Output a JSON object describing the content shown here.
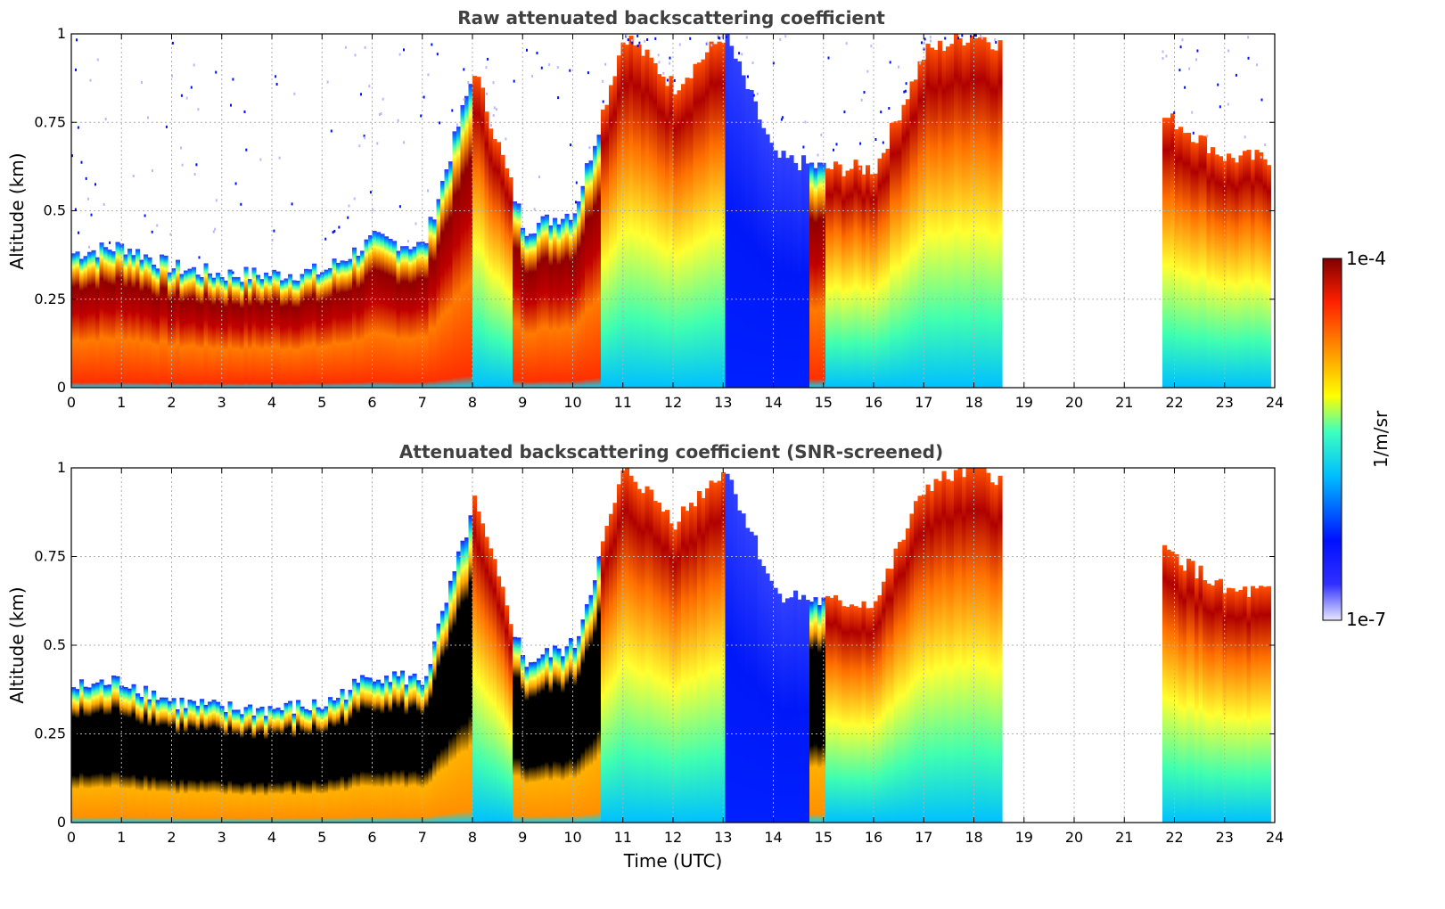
{
  "chart_data": [
    {
      "type": "heatmap",
      "title": "Raw attenuated backscattering coefficient",
      "xlabel": "",
      "ylabel": "Altitude (km)",
      "xlim": [
        0,
        24
      ],
      "ylim": [
        0,
        1
      ],
      "x_ticks": [
        "0",
        "1",
        "2",
        "3",
        "4",
        "5",
        "6",
        "7",
        "8",
        "9",
        "10",
        "11",
        "12",
        "13",
        "14",
        "15",
        "16",
        "17",
        "18",
        "19",
        "20",
        "21",
        "22",
        "23",
        "24"
      ],
      "y_ticks": [
        "0",
        "0.25",
        "0.5",
        "0.75",
        "1"
      ],
      "grid": true,
      "data_gaps_utc": [
        [
          18.5,
          21.75
        ],
        [
          23.9,
          24
        ]
      ],
      "layer_top_km": [
        {
          "t": 0,
          "h": 0.38
        },
        {
          "t": 1,
          "h": 0.4
        },
        {
          "t": 2,
          "h": 0.34
        },
        {
          "t": 3,
          "h": 0.32
        },
        {
          "t": 4,
          "h": 0.32
        },
        {
          "t": 5,
          "h": 0.33
        },
        {
          "t": 6,
          "h": 0.42
        },
        {
          "t": 7,
          "h": 0.4
        },
        {
          "t": 8,
          "h": 0.9
        },
        {
          "t": 9,
          "h": 0.45
        },
        {
          "t": 10,
          "h": 0.5
        },
        {
          "t": 11,
          "h": 1.0
        },
        {
          "t": 12,
          "h": 0.85
        },
        {
          "t": 13,
          "h": 1.0
        },
        {
          "t": 14,
          "h": 0.65
        },
        {
          "t": 15,
          "h": 0.62
        },
        {
          "t": 16,
          "h": 0.62
        },
        {
          "t": 17,
          "h": 0.95
        },
        {
          "t": 18,
          "h": 1.0
        },
        {
          "t": 22,
          "h": 0.75
        },
        {
          "t": 23,
          "h": 0.65
        }
      ]
    },
    {
      "type": "heatmap",
      "title": "Attenuated backscattering coefficient (SNR-screened)",
      "xlabel": "Time (UTC)",
      "ylabel": "Altitude (km)",
      "xlim": [
        0,
        24
      ],
      "ylim": [
        0,
        1
      ],
      "x_ticks": [
        "0",
        "1",
        "2",
        "3",
        "4",
        "5",
        "6",
        "7",
        "8",
        "9",
        "10",
        "11",
        "12",
        "13",
        "14",
        "15",
        "16",
        "17",
        "18",
        "19",
        "20",
        "21",
        "22",
        "23",
        "24"
      ],
      "y_ticks": [
        "0",
        "0.25",
        "0.5",
        "0.75",
        "1"
      ],
      "grid": true,
      "data_gaps_utc": [
        [
          18.5,
          21.75
        ],
        [
          23.9,
          24
        ]
      ]
    }
  ],
  "colorbar": {
    "label": "1/m/sr",
    "max_label": "1e-4",
    "min_label": "1e-7",
    "colors": [
      "#e8e8ff",
      "#0000ff",
      "#00bfff",
      "#3cffc0",
      "#ffff00",
      "#ff9000",
      "#ff2000",
      "#800000"
    ]
  }
}
